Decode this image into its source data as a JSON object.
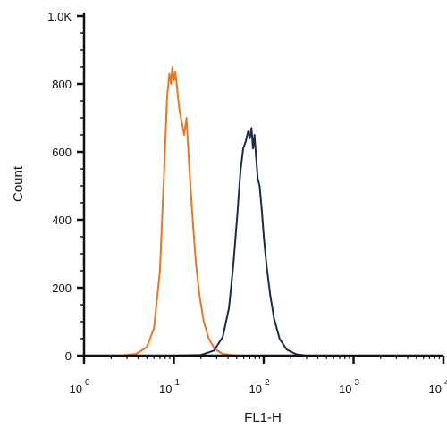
{
  "chart_data": {
    "type": "line",
    "xlabel": "FL1-H",
    "ylabel": "Count",
    "x_scale": "log",
    "xlim": [
      1,
      10000
    ],
    "ylim": [
      0,
      1000
    ],
    "y_ticks": [
      0,
      200,
      400,
      600,
      800,
      1000
    ],
    "y_tick_labels": [
      "0",
      "200",
      "400",
      "600",
      "800",
      "1.0K"
    ],
    "x_ticks": [
      1,
      10,
      100,
      1000,
      10000
    ],
    "x_tick_labels": [
      {
        "base": "10",
        "exp": "0"
      },
      {
        "base": "10",
        "exp": "1"
      },
      {
        "base": "10",
        "exp": "2"
      },
      {
        "base": "10",
        "exp": "3"
      },
      {
        "base": "10",
        "exp": "4"
      }
    ],
    "grid": false,
    "series": [
      {
        "color": "#e87722",
        "x": [
          1,
          2.5,
          3.8,
          5.0,
          6.0,
          7.0,
          7.8,
          8.4,
          8.9,
          9.3,
          9.6,
          10.0,
          10.4,
          10.9,
          11.5,
          12.2,
          13.0,
          13.8,
          14.8,
          16.0,
          17.5,
          19.2,
          21.5,
          24.5,
          28.5,
          35,
          50,
          100,
          1000,
          10000
        ],
        "y": [
          0,
          0,
          5,
          25,
          80,
          250,
          550,
          760,
          830,
          800,
          850,
          810,
          835,
          780,
          725,
          690,
          650,
          700,
          560,
          420,
          280,
          180,
          100,
          50,
          20,
          5,
          0,
          0,
          0,
          0
        ]
      },
      {
        "color": "#1c2b4a",
        "x": [
          1,
          10,
          20,
          28,
          35,
          41,
          46,
          51,
          55,
          59,
          63,
          67,
          70,
          73,
          76,
          79,
          82,
          86,
          90,
          95,
          101,
          108,
          118,
          130,
          150,
          180,
          230,
          300,
          1000,
          10000
        ],
        "y": [
          0,
          0,
          2,
          15,
          55,
          140,
          270,
          420,
          540,
          610,
          630,
          660,
          640,
          670,
          610,
          650,
          590,
          520,
          500,
          430,
          340,
          260,
          180,
          110,
          50,
          18,
          4,
          0,
          0,
          0
        ]
      }
    ]
  }
}
